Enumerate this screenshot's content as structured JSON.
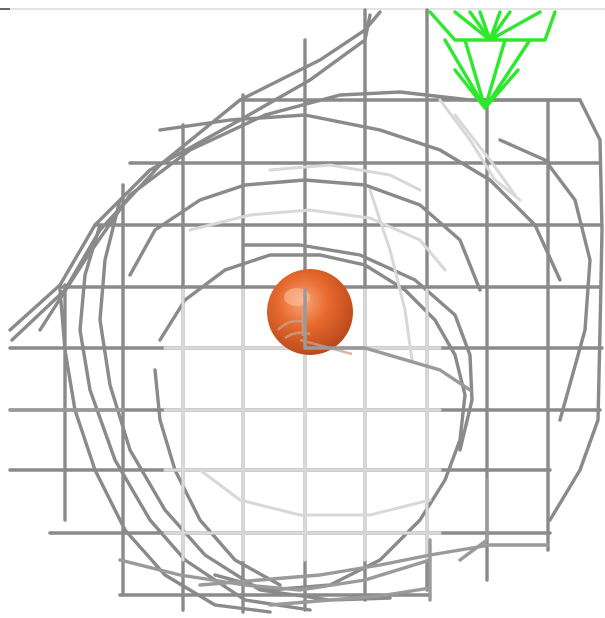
{
  "scene": {
    "background": "#ffffff",
    "mesh_color": "#8a8a8a",
    "mesh_light_color": "#d8d8d8",
    "ligand_color": "#2ee82e",
    "atom_color": "#e2642a",
    "atom_highlight": "#f7a77a"
  }
}
